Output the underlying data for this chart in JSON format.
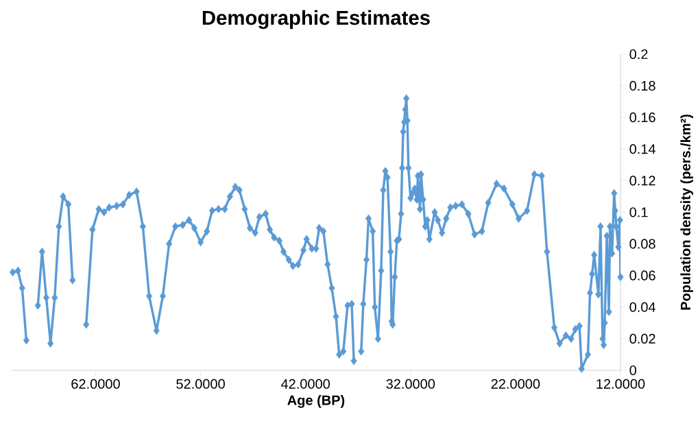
{
  "chart_data": {
    "type": "line",
    "title": "Demographic Estimates",
    "xlabel": "Age (BP)",
    "ylabel": "Population density (pers./km²)",
    "xlim": [
      70,
      12
    ],
    "ylim": [
      0,
      0.2
    ],
    "xticks": [
      {
        "value": 62,
        "label": "62.0000"
      },
      {
        "value": 52,
        "label": "52.0000"
      },
      {
        "value": 42,
        "label": "42.0000"
      },
      {
        "value": 32,
        "label": "32.0000"
      },
      {
        "value": 22,
        "label": "22.0000"
      },
      {
        "value": 12,
        "label": "12.0000"
      }
    ],
    "yticks": [
      0,
      0.02,
      0.04,
      0.06,
      0.08,
      0.1,
      0.12,
      0.14,
      0.16,
      0.18,
      0.2
    ],
    "grid": false,
    "marker": "diamond",
    "line_style": "solid",
    "series": [
      {
        "color": "#5b9bd5",
        "x": [
          69.9,
          69.4,
          69.0,
          68.6,
          67.7,
          67.5,
          67.1,
          66.7,
          66.3,
          65.9,
          65.5,
          65.1,
          64.6,
          64.2,
          63.8,
          62.9,
          62.3,
          61.7,
          61.2,
          60.7,
          60.0,
          59.4,
          58.8,
          58.1,
          57.5,
          56.9,
          56.2,
          55.6,
          55.0,
          54.4,
          53.7,
          53.1,
          52.6,
          52.0,
          51.4,
          50.9,
          50.3,
          49.7,
          49.2,
          48.7,
          48.3,
          47.8,
          47.3,
          46.8,
          46.4,
          45.8,
          45.4,
          45.0,
          44.5,
          44.1,
          43.6,
          43.2,
          42.7,
          42.2,
          41.9,
          41.4,
          41.0,
          40.7,
          40.3,
          39.9,
          39.5,
          39.1,
          38.8,
          38.4,
          38.0,
          37.6,
          37.4,
          37.1,
          36.7,
          36.5,
          36.2,
          36.0,
          35.6,
          35.4,
          35.1,
          34.8,
          34.6,
          34.4,
          34.2,
          33.9,
          33.8,
          33.7,
          33.5,
          33.3,
          33.1,
          32.9,
          32.8,
          32.7,
          32.6,
          32.5,
          32.4,
          32.3,
          32.2,
          32.0,
          31.8,
          31.6,
          31.4,
          31.3,
          31.1,
          31.0,
          30.8,
          30.6,
          30.4,
          30.2,
          29.7,
          29.4,
          29.0,
          28.6,
          28.2,
          27.7,
          27.1,
          26.5,
          25.9,
          25.2,
          24.6,
          23.8,
          23.1,
          22.3,
          21.7,
          20.9,
          20.2,
          19.5,
          19.0,
          18.3,
          17.8,
          17.2,
          16.7,
          16.3,
          15.9,
          15.7,
          15.1,
          14.9,
          14.7,
          14.5,
          14.1,
          13.9,
          13.7,
          13.6,
          13.5,
          13.3,
          13.1,
          13.0,
          12.8,
          12.6,
          12.5,
          12.4,
          12.2,
          12.05,
          12.0
        ],
        "values": [
          0.062,
          0.063,
          0.052,
          0.019,
          null,
          0.041,
          0.075,
          0.046,
          0.017,
          0.046,
          0.091,
          0.11,
          0.105,
          0.057,
          null,
          0.029,
          0.089,
          0.102,
          0.1,
          0.103,
          0.104,
          0.105,
          0.111,
          0.113,
          0.091,
          0.047,
          0.025,
          0.047,
          0.08,
          0.091,
          0.092,
          0.095,
          0.09,
          0.081,
          0.088,
          0.101,
          0.102,
          0.102,
          0.11,
          0.116,
          0.114,
          0.102,
          0.09,
          0.087,
          0.097,
          0.099,
          0.089,
          0.084,
          0.082,
          0.075,
          0.07,
          0.066,
          0.067,
          0.076,
          0.083,
          0.077,
          0.077,
          0.09,
          0.088,
          0.067,
          0.052,
          0.034,
          0.01,
          0.012,
          0.041,
          0.042,
          0.006,
          null,
          0.012,
          0.042,
          0.07,
          0.096,
          0.088,
          0.04,
          0.02,
          0.063,
          0.114,
          0.126,
          0.122,
          0.075,
          0.031,
          0.029,
          0.059,
          0.082,
          0.083,
          0.099,
          0.128,
          0.151,
          0.157,
          0.165,
          0.172,
          0.158,
          0.128,
          0.109,
          0.112,
          0.115,
          0.108,
          0.123,
          0.102,
          0.124,
          0.108,
          0.091,
          0.095,
          0.083,
          0.1,
          0.095,
          0.087,
          0.096,
          0.103,
          0.104,
          0.105,
          0.099,
          0.086,
          0.088,
          0.106,
          0.118,
          0.115,
          0.105,
          0.096,
          0.101,
          0.124,
          0.123,
          0.075,
          0.027,
          0.017,
          0.022,
          0.02,
          0.026,
          0.028,
          0.001,
          0.01,
          0.049,
          0.061,
          0.073,
          0.048,
          0.091,
          0.02,
          0.016,
          0.03,
          0.085,
          0.037,
          0.091,
          0.074,
          0.112,
          0.101,
          0.091,
          0.078,
          0.095,
          0.059
        ]
      }
    ]
  }
}
